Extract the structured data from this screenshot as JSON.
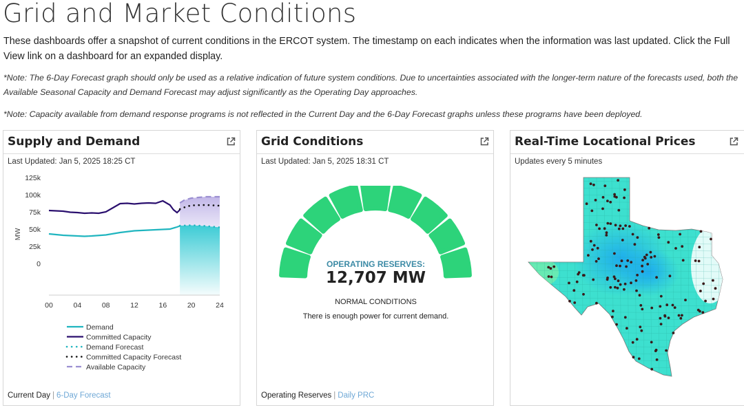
{
  "page": {
    "title": "Grid and Market Conditions",
    "intro": "These dashboards offer a snapshot of current conditions in the ERCOT system. The timestamp on each indicates when the information was last updated. Click the Full View link on a dashboard for an expanded display.",
    "note1": "*Note: The 6-Day Forecast graph should only be used as a relative indication of future system conditions. Due to uncertainties associated with the longer-term nature of the forecasts used, both the Available Seasonal Capacity and Demand Forecast may adjust significantly as the Operating Day approaches.",
    "note2": "*Note: Capacity available from demand response programs is not reflected in the Current Day and the 6-Day Forecast graphs unless these programs have been deployed."
  },
  "supply": {
    "title": "Supply and Demand",
    "updated": "Last Updated: Jan 5, 2025 18:25 CT",
    "footer_current": "Current Day",
    "footer_link": "6-Day Forecast"
  },
  "grid": {
    "title": "Grid Conditions",
    "updated": "Last Updated: Jan 5, 2025 18:31 CT",
    "reserves_label": "OPERATING RESERVES:",
    "reserves_value": "12,707 MW",
    "status": "NORMAL CONDITIONS",
    "message": "There is enough power for current demand.",
    "footer_current": "Operating Reserves",
    "footer_link": "Daily PRC",
    "gauge_color": "#2dd37a",
    "segments_total": 9,
    "segments_lit": 9
  },
  "prices": {
    "title": "Real-Time Locational Prices",
    "updated": "Updates every 5 minutes"
  },
  "chart_data": {
    "type": "line",
    "ylabel": "MW",
    "y_ticks": [
      "125k",
      "100k",
      "75k",
      "50k",
      "25k",
      "0"
    ],
    "x_ticks": [
      "00",
      "04",
      "08",
      "12",
      "16",
      "20",
      "24"
    ],
    "xlim": [
      0,
      24
    ],
    "ylim": [
      0,
      125000
    ],
    "grid": false,
    "legend_position": "bottom",
    "series": [
      {
        "name": "Demand",
        "color": "#1fb5bf",
        "style": "solid",
        "x": [
          0,
          2,
          4,
          5,
          6,
          8,
          10,
          12,
          14,
          16,
          17,
          18,
          18.4
        ],
        "y": [
          43000,
          41000,
          40000,
          39500,
          40000,
          41500,
          45000,
          47500,
          48500,
          49500,
          50000,
          53000,
          54500
        ]
      },
      {
        "name": "Committed Capacity",
        "color": "#2a0f6e",
        "style": "solid",
        "x": [
          0,
          2,
          3,
          4,
          5,
          6,
          7,
          8,
          9,
          10,
          11,
          12,
          13,
          14,
          15,
          16,
          17,
          17.5,
          18,
          18.4
        ],
        "y": [
          77000,
          76000,
          74500,
          74000,
          73000,
          73500,
          73000,
          75000,
          81000,
          87000,
          87500,
          86500,
          87500,
          88000,
          87500,
          91000,
          85000,
          78000,
          74000,
          78000
        ]
      },
      {
        "name": "Demand Forecast",
        "color": "#1fb5bf",
        "style": "dotted",
        "x": [
          18.4,
          20,
          22,
          24
        ],
        "y": [
          55000,
          55500,
          54500,
          52500
        ]
      },
      {
        "name": "Committed Capacity Forecast",
        "color": "#111111",
        "style": "dotted",
        "x": [
          18.4,
          19,
          20,
          22,
          24
        ],
        "y": [
          79000,
          81500,
          84500,
          85000,
          84000
        ]
      },
      {
        "name": "Available Capacity",
        "color": "#9b8fd1",
        "style": "dashed",
        "x": [
          18.4,
          19,
          20,
          22,
          24
        ],
        "y": [
          88000,
          92000,
          95000,
          97000,
          97000
        ]
      }
    ]
  }
}
